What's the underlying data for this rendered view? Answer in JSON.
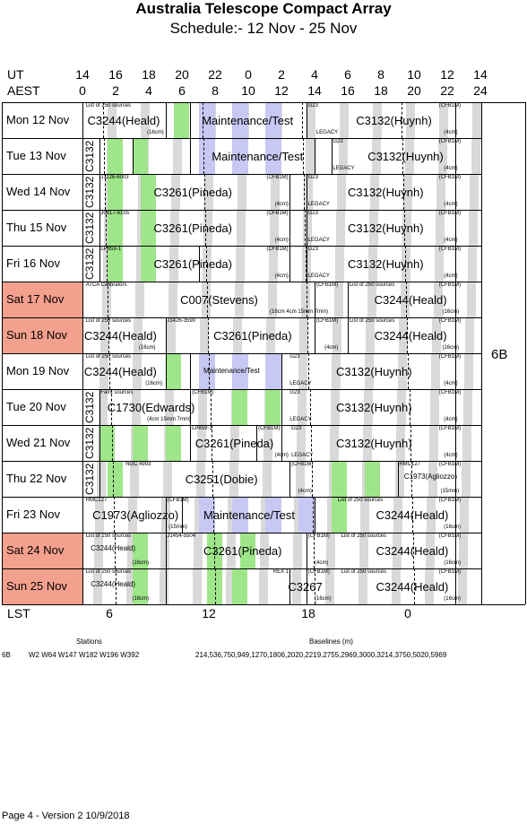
{
  "title": "Australia Telescope Compact Array",
  "subtitle": "Schedule:- 12 Nov - 25 Nov",
  "ut_label": "UT",
  "aest_label": "AEST",
  "ut_ticks": [
    "14",
    "16",
    "18",
    "20",
    "22",
    "0",
    "2",
    "4",
    "6",
    "8",
    "10",
    "12",
    "14"
  ],
  "aest_ticks": [
    "0",
    "2",
    "4",
    "6",
    "8",
    "10",
    "12",
    "14",
    "16",
    "18",
    "20",
    "22",
    "24"
  ],
  "lst_label": "LST",
  "lst_ticks": [
    "6",
    "12",
    "18",
    "0"
  ],
  "config": "6B",
  "colors": {
    "weekend": "#f4a08e",
    "grey": "#d9d9d9",
    "green": "#9fe58a",
    "lavender": "#c8c8f4"
  },
  "days": [
    {
      "label": "Mon  12 Nov",
      "weekend": false
    },
    {
      "label": "Tue   13 Nov",
      "weekend": false
    },
    {
      "label": "Wed  14 Nov",
      "weekend": false
    },
    {
      "label": "Thu   15 Nov",
      "weekend": false
    },
    {
      "label": "Fri    16 Nov",
      "weekend": false
    },
    {
      "label": "Sat    17 Nov",
      "weekend": true
    },
    {
      "label": "Sun   18 Nov",
      "weekend": true
    },
    {
      "label": "Mon  19 Nov",
      "weekend": false
    },
    {
      "label": "Tue   20 Nov",
      "weekend": false
    },
    {
      "label": "Wed  21 Nov",
      "weekend": false
    },
    {
      "label": "Thu   22 Nov",
      "weekend": false
    },
    {
      "label": "Fri    23 Nov",
      "weekend": false
    },
    {
      "label": "Sat    24 Nov",
      "weekend": true
    },
    {
      "label": "Sun   25 Nov",
      "weekend": true
    }
  ],
  "blocks": {
    "r0a": "C3244(Heald)",
    "r0a_note": "List of 250 sources",
    "r0a_band": "(16cm)",
    "r0b": "Maintenance/Test",
    "r0c_id": "G23",
    "r0c_legacy": "LEGACY",
    "r0d": "C3132(Huynh)",
    "r0d_cfb": "(CFB1M)",
    "r0d_band": "(4cm)",
    "r1a": "C3132",
    "r1b": "Maintenance/Test",
    "r1c_id": "G23",
    "r1c_legacy": "LEGACY",
    "r1d": "C3132(Huynh)",
    "r1d_cfb": "(CFB1M)",
    "r1d_band": "(4cm)",
    "r2a": "C3132",
    "r2b_note": "J1126-6003",
    "r2b": "C3261(Pineda)",
    "r2b_cfb": "(CFB1M)",
    "r2b_band": "(4cm)",
    "r2c_id": "G23",
    "r2c_legacy": "LEGACY",
    "r2d": "C3132(Huynh)",
    "r2d_cfb": "(CFB1M)",
    "r2d_band": "(4cm)",
    "r3a": "C3132",
    "r3b_note": "J0817-6155",
    "r3b": "C3261(Pineda)",
    "r3b_cfb": "(CFB1M)",
    "r3b_band": "(4cm)",
    "r3c_id": "G23",
    "r3c_legacy": "LEGACY",
    "r3d": "C3132(Huynh)",
    "r3d_cfb": "(CFB1M)",
    "r3d_band": "(4cm)",
    "r4a": "C3132",
    "r4b_note": "LP859-1",
    "r4b": "C3261(Pineda)",
    "r4b_cfb": "(CFB1M)",
    "r4b_band": "(4cm)",
    "r4c_id": "G23",
    "r4c_legacy": "LEGACY",
    "r4d": "C3132(Huynh)",
    "r4d_cfb": "(CFB1M)",
    "r4d_band": "(4cm)",
    "r5a_note": "ATCA Calibrators",
    "r5a": "C007(Stevens)",
    "r5a_band": "(16cm 4cm 15mm 7mm)",
    "r5a_cfb": "(CFB1M)",
    "r5b_note": "List of 250 sources",
    "r5b": "C3244(Heald)",
    "r5b_cfb": "(CFB1M)",
    "r5b_band": "(16cm)",
    "r6a_note": "List of 250 sources",
    "r6a": "C3244(Heald)",
    "r6a_band": "(16cm)",
    "r6b_note": "J1426-3590",
    "r6b": "C3261(Pineda)",
    "r6b_cfb": "(CFB1M)",
    "r6b_band": "(4cm)",
    "r6c_note": "List of 250 sources",
    "r6c": "C3244(Heald)",
    "r6c_cfb": "(CFB1M)",
    "r6c_band": "(16cm)",
    "r7a_note": "List of 250 sources",
    "r7a": "C3244(Heald)",
    "r7a_band": "(16cm)",
    "r7b": "Maintenance/Test",
    "r7c_id": "G23",
    "r7c_legacy": "LEGACY",
    "r7d": "C3132(Huynh)",
    "r7d_cfb": "(CFB1M)",
    "r7d_band": "(4cm)",
    "r8a": "C3132",
    "r8b_note": "Faint sources",
    "r8b": "C1730(Edwards)",
    "r8b_cfb": "(CFB1M)",
    "r8b_band": "(4cm 15mm 7mm)",
    "r8c_id": "G23",
    "r8c_legacy": "LEGACY",
    "r8d": "C3132(Huynh)",
    "r8d_cfb": "(CFB1M)",
    "r8d_band": "(4cm)",
    "r9a": "C3132",
    "r9b_note": "LP859-1",
    "r9b": "C3261(Pineda)",
    "r9b_cfb": "(CFB1M)",
    "r9b_band": "(4cm)",
    "r9c_id": "G23",
    "r9c_legacy": "LEGACY",
    "r9d": "C3132(Huynh)",
    "r9d_cfb": "(CFB1M)",
    "r9d_band": "(4cm)",
    "r10a": "C3132",
    "r10b_note": "NGC 4993",
    "r10b": "C3251(Dobie)",
    "r10b_cfb": "(CFB1M)",
    "r10b_band": "(4cm)",
    "r10c_note": "RMC127",
    "r10c": "C1973(Agliozzo)",
    "r10c_cfb": "(CFB1M)",
    "r10c_band": "(15mm)",
    "r11a_note": "RMC127",
    "r11a": "C1973(Agliozzo)",
    "r11a_cfb": "(CFB1M)",
    "r11a_band": "(15mm)",
    "r11b": "Maintenance/Test",
    "r11c_note": "List of 250 sources",
    "r11c": "C3244(Heald)",
    "r11c_cfb": "(CFB1M)",
    "r11c_band": "(16cm)",
    "r12a_note": "List of 250 sources",
    "r12a": "C3244(Heald)",
    "r12a_band": "(16cm)",
    "r12b_note": "J1454-5504",
    "r12b": "C3261(Pineda)",
    "r12b_cfb": "(CFB1M)",
    "r12b_band": "(4cm)",
    "r12c_note": "List of 250 sources",
    "r12c": "C3244(Heald)",
    "r12c_cfb": "(CFB1M)",
    "r12c_band": "(16cm)",
    "r13a_note": "List of 250 sources",
    "r13a": "C3244(Heald)",
    "r13a_band": "(16cm)",
    "r13b_note": "REX 1",
    "r13b": "C3267",
    "r13b_cfb": "(CFB1M)",
    "r13b_band": "(16cm)",
    "r13c_note": "List of 250 sources",
    "r13c": "C3244(Heald)",
    "r13c_cfb": "(CFB1M)",
    "r13c_band": "(16cm)"
  },
  "stations_header": "Stations",
  "baselines_header": "Baselines (m)",
  "config_row": "6B",
  "stations": "W2 W64 W147 W182 W196 W392",
  "baselines": "214,536,750,949,1270,1806,2020,2219,2755,2969,3000,3214,3750,5020,5969",
  "footer": "Page 4 - Version 2  10/9/2018"
}
